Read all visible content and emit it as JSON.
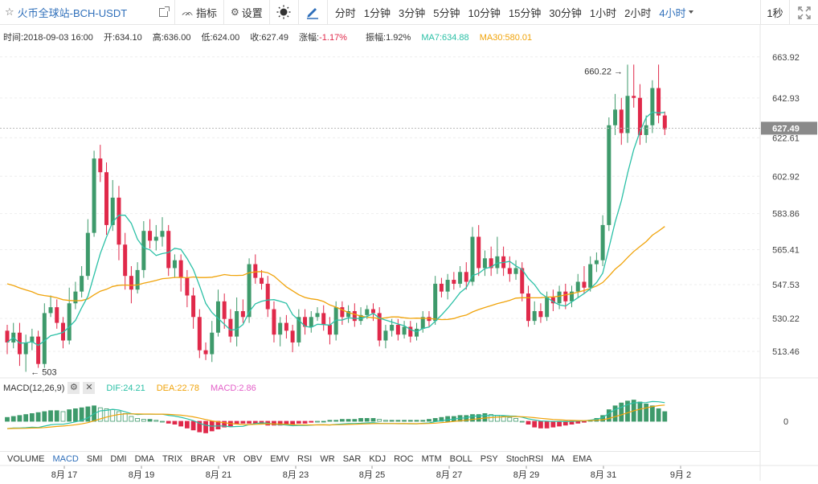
{
  "toolbar": {
    "title": "火币全球站-BCH-USDT",
    "indicators_label": "指标",
    "settings_label": "设置",
    "timeframes": [
      "分时",
      "1分钟",
      "3分钟",
      "5分钟",
      "10分钟",
      "15分钟",
      "30分钟",
      "1小时",
      "2小时",
      "4小时"
    ],
    "active_timeframe": "4小时",
    "refresh_label": "1秒"
  },
  "info": {
    "time": "时间:2018-09-03 16:00",
    "open": "开:634.10",
    "high": "高:636.00",
    "low": "低:624.00",
    "close": "收:627.49",
    "change": "涨幅:-1.17%",
    "amplitude": "振幅:1.92%",
    "ma7": "MA7:634.88",
    "ma30": "MA30:580.01"
  },
  "macd_legend": {
    "label": "MACD(12,26,9)",
    "dif": "DIF:24.21",
    "dea": "DEA:22.78",
    "macd": "MACD:2.86"
  },
  "indicators": [
    "VOLUME",
    "MACD",
    "SMI",
    "DMI",
    "DMA",
    "TRIX",
    "BRAR",
    "VR",
    "OBV",
    "EMV",
    "RSI",
    "WR",
    "SAR",
    "KDJ",
    "ROC",
    "MTM",
    "BOLL",
    "PSY",
    "StochRSI",
    "MA",
    "EMA"
  ],
  "active_indicator": "MACD",
  "colors": {
    "up": "#3e9a6b",
    "down": "#e0294a",
    "ma7": "#2bc0a6",
    "ma30": "#f0a30a",
    "accent": "#2f6fba"
  },
  "chart_data": {
    "type": "candlestick",
    "price_axis_ticks": [
      "663.92",
      "642.93",
      "622.61",
      "602.92",
      "583.86",
      "565.41",
      "547.53",
      "530.22",
      "513.46"
    ],
    "last_price": "627.49",
    "max_label": "660.22",
    "min_label": "503",
    "ylim": [
      504,
      670
    ],
    "x_tick_labels": [
      "8月 17",
      "8月 19",
      "8月 21",
      "8月 23",
      "8月 25",
      "8月 27",
      "8月 29",
      "8月 31",
      "9月 2"
    ],
    "macd_zero_label": "0",
    "candles": [
      [
        524,
        518,
        527,
        512
      ],
      [
        518,
        523,
        528,
        515
      ],
      [
        523,
        512,
        528,
        506
      ],
      [
        512,
        518,
        522,
        503
      ],
      [
        518,
        521,
        525,
        514
      ],
      [
        521,
        507,
        524,
        505
      ],
      [
        507,
        533,
        538,
        505
      ],
      [
        533,
        536,
        542,
        531
      ],
      [
        536,
        528,
        540,
        525
      ],
      [
        528,
        519,
        531,
        515
      ],
      [
        519,
        538,
        546,
        517
      ],
      [
        538,
        544,
        549,
        535
      ],
      [
        544,
        552,
        557,
        541
      ],
      [
        552,
        574,
        581,
        550
      ],
      [
        574,
        612,
        616,
        572
      ],
      [
        612,
        605,
        619,
        600
      ],
      [
        605,
        578,
        610,
        573
      ],
      [
        578,
        592,
        601,
        575
      ],
      [
        592,
        568,
        598,
        560
      ],
      [
        568,
        552,
        574,
        545
      ],
      [
        552,
        545,
        557,
        538
      ],
      [
        545,
        555,
        559,
        543
      ],
      [
        555,
        575,
        580,
        551
      ],
      [
        575,
        570,
        581,
        566
      ],
      [
        570,
        572,
        578,
        565
      ],
      [
        572,
        575,
        582,
        567
      ],
      [
        575,
        556,
        578,
        552
      ],
      [
        556,
        560,
        563,
        551
      ],
      [
        560,
        551,
        563,
        544
      ],
      [
        551,
        542,
        555,
        536
      ],
      [
        542,
        531,
        546,
        525
      ],
      [
        531,
        514,
        535,
        510
      ],
      [
        514,
        512,
        518,
        509
      ],
      [
        512,
        523,
        529,
        508
      ],
      [
        523,
        539,
        545,
        521
      ],
      [
        539,
        530,
        543,
        525
      ],
      [
        530,
        521,
        535,
        518
      ],
      [
        521,
        534,
        541,
        516
      ],
      [
        534,
        531,
        540,
        528
      ],
      [
        531,
        558,
        561,
        528
      ],
      [
        558,
        551,
        563,
        548
      ],
      [
        551,
        548,
        555,
        545
      ],
      [
        548,
        535,
        552,
        531
      ],
      [
        535,
        522,
        539,
        518
      ],
      [
        522,
        528,
        531,
        516
      ],
      [
        528,
        524,
        532,
        520
      ],
      [
        524,
        518,
        527,
        513
      ],
      [
        518,
        531,
        535,
        516
      ],
      [
        531,
        526,
        535,
        522
      ],
      [
        526,
        531,
        534,
        523
      ],
      [
        531,
        533,
        536,
        529
      ],
      [
        533,
        527,
        537,
        524
      ],
      [
        527,
        522,
        531,
        517
      ],
      [
        522,
        536,
        539,
        519
      ],
      [
        536,
        531,
        539,
        527
      ],
      [
        531,
        534,
        537,
        528
      ],
      [
        534,
        529,
        538,
        526
      ],
      [
        529,
        532,
        536,
        527
      ],
      [
        532,
        535,
        537,
        530
      ],
      [
        535,
        533,
        538,
        529
      ],
      [
        533,
        519,
        536,
        516
      ],
      [
        519,
        524,
        527,
        515
      ],
      [
        524,
        527,
        530,
        521
      ],
      [
        527,
        522,
        530,
        519
      ],
      [
        522,
        526,
        529,
        520
      ],
      [
        526,
        521,
        529,
        518
      ],
      [
        521,
        525,
        528,
        519
      ],
      [
        525,
        531,
        534,
        523
      ],
      [
        531,
        529,
        534,
        526
      ],
      [
        529,
        548,
        552,
        527
      ],
      [
        548,
        544,
        551,
        541
      ],
      [
        544,
        550,
        553,
        540
      ],
      [
        550,
        548,
        554,
        545
      ],
      [
        548,
        554,
        557,
        546
      ],
      [
        554,
        549,
        559,
        545
      ],
      [
        549,
        572,
        577,
        547
      ],
      [
        572,
        556,
        578,
        552
      ],
      [
        556,
        561,
        565,
        552
      ],
      [
        561,
        556,
        567,
        552
      ],
      [
        556,
        562,
        572,
        553
      ],
      [
        562,
        556,
        567,
        552
      ],
      [
        556,
        553,
        562,
        549
      ],
      [
        553,
        556,
        560,
        550
      ],
      [
        556,
        543,
        559,
        539
      ],
      [
        543,
        529,
        547,
        526
      ],
      [
        529,
        534,
        539,
        527
      ],
      [
        534,
        531,
        538,
        528
      ],
      [
        531,
        541,
        544,
        529
      ],
      [
        541,
        538,
        545,
        534
      ],
      [
        538,
        544,
        547,
        535
      ],
      [
        544,
        539,
        548,
        535
      ],
      [
        539,
        544,
        547,
        536
      ],
      [
        544,
        549,
        553,
        541
      ],
      [
        549,
        546,
        557,
        543
      ],
      [
        546,
        558,
        562,
        544
      ],
      [
        558,
        560,
        564,
        554
      ],
      [
        560,
        578,
        583,
        557
      ],
      [
        578,
        629,
        633,
        575
      ],
      [
        629,
        637,
        645,
        624
      ],
      [
        637,
        625,
        643,
        619
      ],
      [
        625,
        644,
        660,
        620
      ],
      [
        644,
        643,
        660,
        638
      ],
      [
        643,
        624,
        650,
        619
      ],
      [
        624,
        629,
        634,
        620
      ],
      [
        629,
        648,
        652,
        625
      ],
      [
        648,
        634,
        660,
        630
      ],
      [
        634,
        627,
        636,
        624
      ]
    ],
    "macd_hist": [
      0.4,
      0.5,
      0.6,
      0.7,
      0.8,
      0.9,
      1.0,
      1.1,
      1.1,
      1.0,
      1.2,
      1.3,
      1.4,
      1.5,
      1.6,
      1.4,
      1.3,
      1.2,
      1.0,
      0.8,
      0.5,
      0.3,
      0.2,
      0.2,
      0.1,
      0.0,
      -0.2,
      -0.3,
      -0.5,
      -0.7,
      -0.9,
      -1.1,
      -1.2,
      -1.0,
      -0.8,
      -0.6,
      -0.5,
      -0.3,
      -0.2,
      -0.2,
      -0.2,
      -0.3,
      -0.4,
      -0.4,
      -0.4,
      -0.3,
      -0.3,
      -0.2,
      -0.2,
      -0.1,
      0.0,
      0.0,
      0.1,
      0.1,
      0.2,
      0.2,
      0.2,
      0.3,
      0.3,
      0.3,
      0.2,
      0.1,
      0.1,
      0.1,
      0.1,
      0.1,
      0.1,
      0.1,
      0.2,
      0.3,
      0.4,
      0.5,
      0.5,
      0.6,
      0.6,
      0.7,
      0.7,
      0.8,
      0.7,
      0.6,
      0.5,
      0.4,
      0.3,
      0.0,
      -0.3,
      -0.6,
      -0.7,
      -0.7,
      -0.6,
      -0.5,
      -0.4,
      -0.3,
      -0.2,
      -0.1,
      0.1,
      0.3,
      0.6,
      1.2,
      1.6,
      1.9,
      2.1,
      2.2,
      2.0,
      1.8,
      1.6,
      1.3,
      1.0
    ]
  }
}
